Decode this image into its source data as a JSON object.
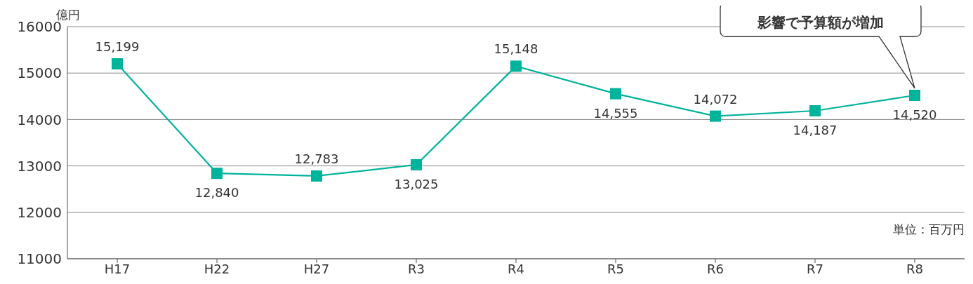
{
  "chart_data": {
    "type": "line",
    "ylabel": "億円",
    "categories": [
      "H17",
      "H22",
      "H27",
      "R3",
      "R4",
      "R5",
      "R6",
      "R7",
      "R8"
    ],
    "series": [
      {
        "color": "#00b39b",
        "values": [
          15199,
          12840,
          12783,
          13025,
          15148,
          14555,
          14072,
          14187,
          14520
        ],
        "value_labels": [
          "15,199",
          "12,840",
          "12,783",
          "13,025",
          "15,148",
          "14,555",
          "14,072",
          "14,187",
          "14,520"
        ]
      }
    ],
    "ylim": [
      11000,
      16000
    ],
    "yticks": [
      11000,
      12000,
      13000,
      14000,
      15000,
      16000
    ],
    "grid": "y",
    "marker": "square",
    "line_style": "solid",
    "annotations": [
      "影響で予算額が増加",
      "単位：百万円"
    ]
  }
}
